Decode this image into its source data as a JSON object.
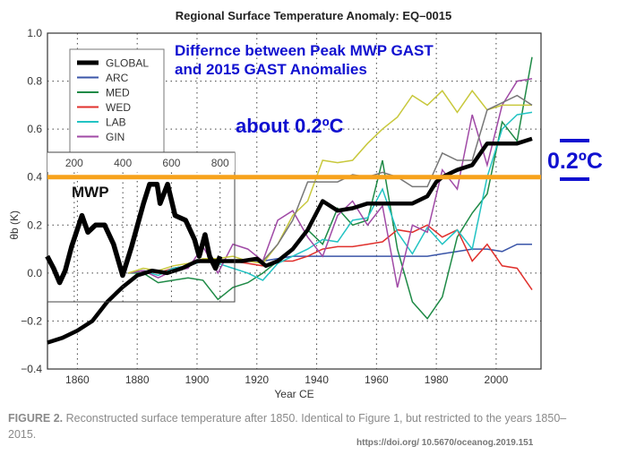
{
  "chart_data": {
    "type": "line",
    "title": "Regional Surface Temperature Anomaly: EQ–0015",
    "xlabel": "Year CE",
    "ylabel": "θb (K)",
    "xlim": [
      1850,
      2015
    ],
    "ylim": [
      -0.4,
      1.0
    ],
    "xticks": [
      1860,
      1880,
      1900,
      1920,
      1940,
      1960,
      1980,
      2000
    ],
    "yticks": [
      "1.0",
      "0.8",
      "0.6",
      "0.4",
      "0.2",
      "0.0",
      "−0.2",
      "−0.4"
    ],
    "ytick_values": [
      1.0,
      0.8,
      0.6,
      0.4,
      0.2,
      0.0,
      -0.2,
      -0.4
    ],
    "grid": true,
    "legend_position": "top-left",
    "global": {
      "name": "GLOBAL",
      "color": "#000000",
      "x": [
        1850,
        1855,
        1860,
        1865,
        1870,
        1875,
        1880,
        1885,
        1890,
        1895,
        1900,
        1905,
        1910,
        1915,
        1920,
        1923,
        1927,
        1932,
        1937,
        1942,
        1947,
        1952,
        1957,
        1962,
        1967,
        1972,
        1977,
        1980,
        1982,
        1987,
        1992,
        1997,
        2002,
        2007,
        2012
      ],
      "y": [
        -0.29,
        -0.27,
        -0.24,
        -0.2,
        -0.12,
        -0.06,
        -0.01,
        0.01,
        0.0,
        0.02,
        0.05,
        0.05,
        0.05,
        0.05,
        0.06,
        0.03,
        0.05,
        0.1,
        0.18,
        0.3,
        0.26,
        0.27,
        0.29,
        0.29,
        0.29,
        0.29,
        0.32,
        0.38,
        0.4,
        0.43,
        0.45,
        0.54,
        0.54,
        0.54,
        0.56
      ]
    },
    "regional_x": [
      1877,
      1882,
      1887,
      1892,
      1897,
      1902,
      1907,
      1912,
      1917,
      1922,
      1927,
      1932,
      1937,
      1942,
      1947,
      1952,
      1957,
      1962,
      1967,
      1972,
      1977,
      1982,
      1987,
      1992,
      1997,
      2002,
      2007,
      2012
    ],
    "series": [
      {
        "name": "ARC",
        "color": "#3a55a8",
        "values": [
          0.0,
          0.01,
          0.0,
          0.02,
          0.03,
          0.05,
          0.05,
          0.05,
          0.05,
          0.05,
          0.06,
          0.07,
          0.07,
          0.07,
          0.07,
          0.07,
          0.07,
          0.07,
          0.07,
          0.07,
          0.07,
          0.08,
          0.09,
          0.1,
          0.1,
          0.09,
          0.12,
          0.12
        ]
      },
      {
        "name": "MED",
        "color": "#1e8a46",
        "values": [
          0.0,
          0.0,
          -0.04,
          -0.03,
          -0.02,
          -0.03,
          -0.11,
          -0.06,
          -0.04,
          0.0,
          0.05,
          0.1,
          0.18,
          0.12,
          0.27,
          0.2,
          0.22,
          0.47,
          0.1,
          -0.12,
          -0.19,
          -0.1,
          0.15,
          0.25,
          0.33,
          0.63,
          0.55,
          0.9
        ]
      },
      {
        "name": "WED",
        "color": "#e0302c",
        "values": [
          0.0,
          0.01,
          0.0,
          0.02,
          0.03,
          0.05,
          0.05,
          0.05,
          0.04,
          0.03,
          0.05,
          0.05,
          0.07,
          0.1,
          0.11,
          0.11,
          0.12,
          0.13,
          0.18,
          0.17,
          0.2,
          0.15,
          0.18,
          0.05,
          0.12,
          0.03,
          0.02,
          -0.07
        ]
      },
      {
        "name": "LAB",
        "color": "#22c3c3",
        "values": [
          0.0,
          0.01,
          -0.01,
          0.02,
          0.03,
          0.05,
          0.04,
          0.02,
          0.0,
          -0.03,
          0.04,
          0.07,
          0.1,
          0.14,
          0.13,
          0.22,
          0.23,
          0.35,
          0.17,
          0.08,
          0.19,
          0.12,
          0.18,
          0.1,
          0.4,
          0.6,
          0.66,
          0.67
        ]
      },
      {
        "name": "GIN",
        "color": "#a04aa6",
        "values": [
          0.0,
          0.01,
          -0.02,
          0.01,
          0.02,
          0.11,
          0.0,
          0.12,
          0.1,
          0.05,
          0.22,
          0.26,
          0.15,
          0.07,
          0.24,
          0.3,
          0.2,
          0.28,
          -0.06,
          0.2,
          0.17,
          0.43,
          0.35,
          0.66,
          0.45,
          0.7,
          0.8,
          0.81
        ]
      },
      {
        "name": "",
        "color": "#c8c83c",
        "values": [
          0.0,
          0.02,
          0.01,
          0.03,
          0.04,
          0.06,
          0.06,
          0.07,
          0.05,
          0.04,
          0.12,
          0.24,
          0.3,
          0.47,
          0.46,
          0.47,
          0.54,
          0.6,
          0.65,
          0.74,
          0.7,
          0.76,
          0.67,
          0.76,
          0.68,
          0.7,
          0.7,
          0.7
        ]
      },
      {
        "name": "",
        "color": "#777777",
        "values": [
          null,
          null,
          null,
          null,
          null,
          null,
          null,
          null,
          null,
          0.05,
          0.12,
          0.22,
          0.38,
          0.38,
          0.38,
          0.41,
          0.4,
          0.42,
          0.4,
          0.36,
          0.36,
          0.5,
          0.47,
          0.47,
          0.68,
          0.71,
          0.74,
          0.7
        ]
      }
    ],
    "legend": [
      "GLOBAL",
      "ARC",
      "MED",
      "WED",
      "LAB",
      "GIN"
    ],
    "reference_line": {
      "value": 0.4,
      "color": "#f7a21b"
    },
    "inset": {
      "label": "MWP",
      "xticks": [
        "200",
        "400",
        "600",
        "800"
      ],
      "xtick_values": [
        200,
        400,
        600,
        800
      ],
      "xlim": [
        90,
        860
      ],
      "x": [
        89,
        115,
        140,
        163,
        189,
        232,
        256,
        288,
        325,
        362,
        399,
        436,
        485,
        510,
        541,
        553,
        584,
        615,
        658,
        695,
        714,
        738,
        757,
        781,
        800
      ],
      "y": [
        0.07,
        0.02,
        -0.04,
        0.01,
        0.11,
        0.24,
        0.17,
        0.2,
        0.2,
        0.12,
        -0.01,
        0.11,
        0.29,
        0.37,
        0.37,
        0.29,
        0.37,
        0.24,
        0.22,
        0.14,
        0.07,
        0.16,
        0.07,
        0.02,
        0.07
      ]
    },
    "annotations": {
      "line1": "Differnce between Peak MWP GAST",
      "line2": "and 2015 GAST Anomalies",
      "about": "about 0.2ºC",
      "diff": "0.2ºC",
      "color": "#1010d0"
    }
  },
  "caption": {
    "label": "FIGURE 2.",
    "text": " Reconstructed surface temperature after 1850. Identical to Figure 1, but restricted to the years 1850–2015.",
    "doi": "https://doi.org/ 10.5670/oceanog.2019.151"
  }
}
